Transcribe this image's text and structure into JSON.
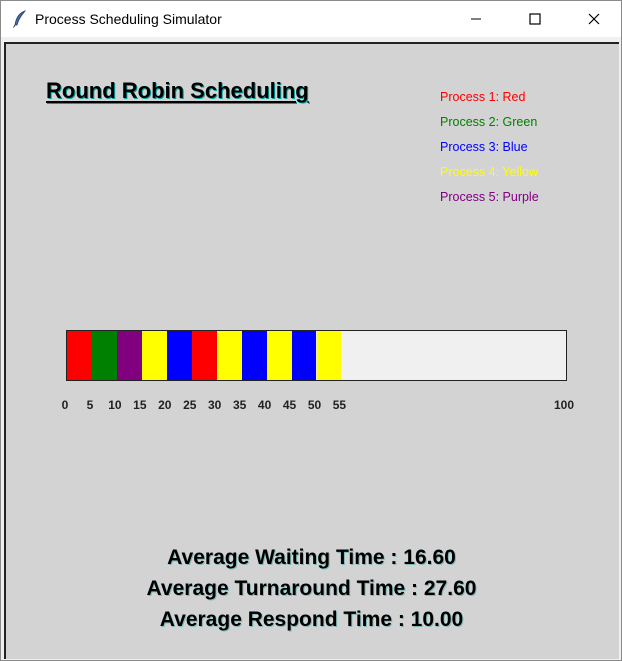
{
  "window": {
    "title": "Process Scheduling Simulator"
  },
  "heading": "Round Robin Scheduling",
  "legend": [
    {
      "label": "Process 1: Red",
      "color": "#ff0000"
    },
    {
      "label": "Process 2: Green",
      "color": "#008000"
    },
    {
      "label": "Process 3: Blue",
      "color": "#0000ff"
    },
    {
      "label": "Process 4: Yellow",
      "color": "#ffff00"
    },
    {
      "label": "Process 5: Purple",
      "color": "#800080"
    }
  ],
  "gantt": {
    "max_time": 100,
    "quantum": 5,
    "segments": [
      {
        "process": 1,
        "start": 0,
        "end": 5,
        "color": "#ff0000"
      },
      {
        "process": 2,
        "start": 5,
        "end": 10,
        "color": "#008000"
      },
      {
        "process": 5,
        "start": 10,
        "end": 15,
        "color": "#800080"
      },
      {
        "process": 4,
        "start": 15,
        "end": 20,
        "color": "#ffff00"
      },
      {
        "process": 3,
        "start": 20,
        "end": 25,
        "color": "#0000ff"
      },
      {
        "process": 1,
        "start": 25,
        "end": 30,
        "color": "#ff0000"
      },
      {
        "process": 4,
        "start": 30,
        "end": 35,
        "color": "#ffff00"
      },
      {
        "process": 3,
        "start": 35,
        "end": 40,
        "color": "#0000ff"
      },
      {
        "process": 4,
        "start": 40,
        "end": 45,
        "color": "#ffff00"
      },
      {
        "process": 3,
        "start": 45,
        "end": 50,
        "color": "#0000ff"
      },
      {
        "process": 4,
        "start": 50,
        "end": 55,
        "color": "#ffff00"
      }
    ],
    "ticks": [
      "0",
      "5",
      "10",
      "15",
      "20",
      "25",
      "30",
      "35",
      "40",
      "45",
      "50",
      "55",
      "100"
    ]
  },
  "stats": [
    "Average Waiting Time : 16.60",
    "Average Turnaround Time : 27.60",
    "Average Respond Time : 10.00"
  ]
}
